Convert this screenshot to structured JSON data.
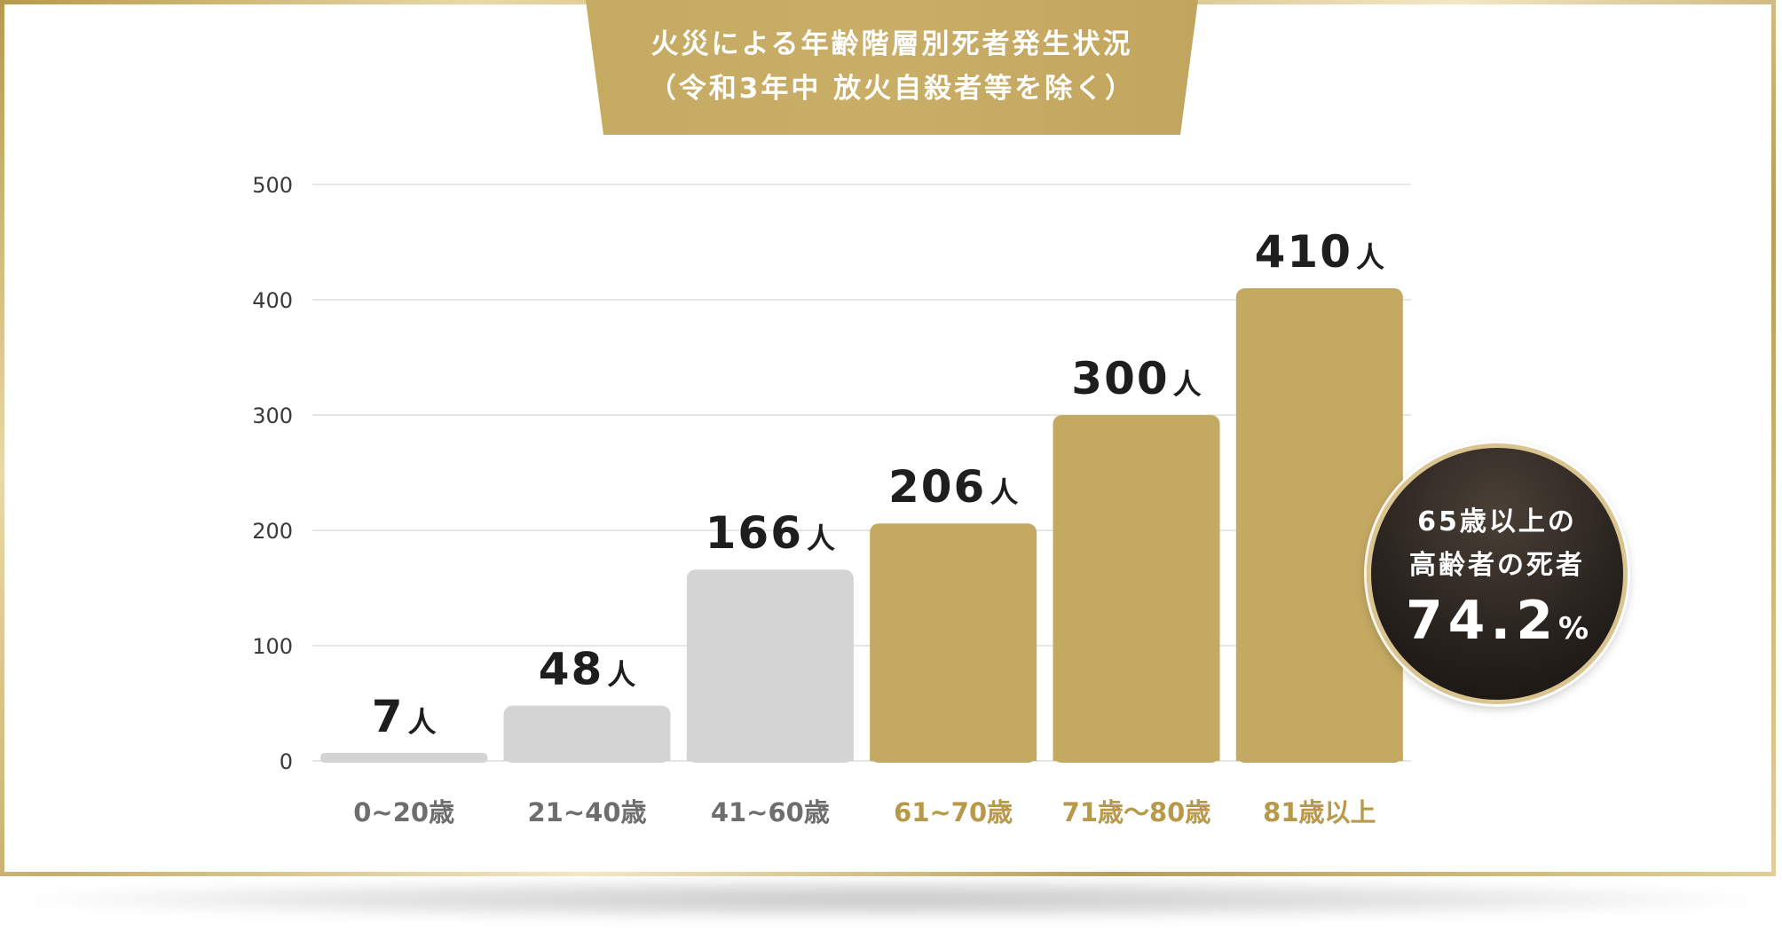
{
  "title": {
    "line1": "火災による年齢階層別死者発生状況",
    "line2": "（令和3年中 放火自殺者等を除く）"
  },
  "colors": {
    "gold": "#c4a963",
    "gray": "#d4d4d4",
    "gold_label": "#b8994a",
    "gray_label": "#6e6e6e",
    "grid": "#e6e6e6"
  },
  "badge": {
    "line1": "65歳以上の",
    "line2": "高齢者の死者",
    "value": "74.2",
    "unit": "%"
  },
  "chart_data": {
    "type": "bar",
    "title": "火災による年齢階層別死者発生状況（令和3年中 放火自殺者等を除く）",
    "categories": [
      "0~20歳",
      "21~40歳",
      "41~60歳",
      "61~70歳",
      "71歳〜80歳",
      "81歳以上"
    ],
    "values": [
      7,
      48,
      166,
      206,
      300,
      410
    ],
    "value_unit": "人",
    "highlight": [
      false,
      false,
      false,
      true,
      true,
      true
    ],
    "yticks": [
      0,
      100,
      200,
      300,
      400,
      500
    ],
    "ylim": [
      0,
      500
    ],
    "grid": true,
    "xlabel": "",
    "ylabel": ""
  }
}
